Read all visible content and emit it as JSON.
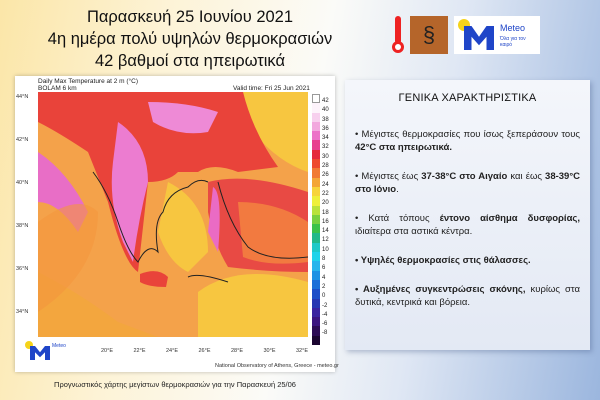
{
  "header": {
    "line1": "Παρασκευή 25 Ιουνίου 2021",
    "line2": "4η ημέρα πολύ υψηλών θερμοκρασιών",
    "line3": "42 βαθμοί στα ηπειρωτικά"
  },
  "logos": {
    "icons": [
      "thermometer-icon",
      "wind-dust-icon",
      "meteo-logo"
    ],
    "meteo_name": "Meteo",
    "meteo_tagline": "Όλα για τον καιρό"
  },
  "map": {
    "title": "Daily Max Temperature at 2 m (°C)",
    "model": "BOLAM 6 km",
    "valid_time": "Valid time: Fri 25 Jun 2021",
    "lat_labels": [
      "44°N",
      "42°N",
      "40°N",
      "38°N",
      "36°N",
      "34°N"
    ],
    "lon_labels": [
      "20°E",
      "22°E",
      "24°E",
      "26°E",
      "28°E",
      "30°E",
      "32°E"
    ],
    "colorbar_labels": [
      "42",
      "40",
      "38",
      "36",
      "34",
      "32",
      "30",
      "28",
      "26",
      "24",
      "22",
      "20",
      "18",
      "16",
      "14",
      "12",
      "10",
      "8",
      "6",
      "4",
      "2",
      "0",
      "-2",
      "-4",
      "-6",
      "-8"
    ],
    "colorbar_colors": [
      "#fdf3fb",
      "#f7d0ee",
      "#f2a8de",
      "#ec72c8",
      "#e8408f",
      "#e52a3a",
      "#ee4a2e",
      "#f17a33",
      "#f4a637",
      "#f7d43b",
      "#eef03a",
      "#b9e23b",
      "#79d040",
      "#3cc24a",
      "#22b98a",
      "#1ec9c8",
      "#1fd3ea",
      "#27b5ec",
      "#1d92e4",
      "#1c6fd8",
      "#1d4ec8",
      "#2637b2",
      "#3a23a0",
      "#3b1480",
      "#2c0b55",
      "#1a0530"
    ],
    "credit": "National Observatory of Athens, Greece - meteo.gr",
    "logo_name": "Meteo"
  },
  "caption": "Προγνωστικός χάρτης μεγίστων θερμοκρασιών για την Παρασκευή 25/06",
  "panel": {
    "title": "ΓΕΝΙΚΑ ΧΑΡΑΚΤΗΡΙΣΤΙΚΑ",
    "b1_a": "• Μέγιστες θερμοκρασίες που ίσως ξεπεράσουν τους ",
    "b1_b": "42°C στα ηπειρωτικά.",
    "b2_a": "• Μέγιστες έως ",
    "b2_b": "37-38°C στο Αιγαίο",
    "b2_c": " και έως ",
    "b2_d": "38-39°C στο Ιόνιο",
    ".": ".",
    "b2_e": ".",
    "b3_a": "• Κατά τόπους ",
    "b3_b": "έντονο αίσθημα δυσφορίας,",
    "b3_c": " ιδιαίτερα στα αστικά κέντρα.",
    "b4": "•  Υψηλές θερμοκρασίες στις θάλασσες.",
    "b5_a": "• Αυξημένες συγκεντρώσεις σκόνης,",
    "b5_b": " κυρίως στα δυτικά, κεντρικά και βόρεια."
  }
}
